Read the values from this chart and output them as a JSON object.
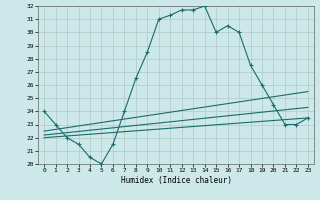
{
  "xlabel": "Humidex (Indice chaleur)",
  "bg_color": "#cce8e8",
  "grid_color": "#b0c8c8",
  "line_color": "#1a6b6b",
  "xlim": [
    -0.5,
    23.5
  ],
  "ylim": [
    20,
    32
  ],
  "xticks": [
    0,
    1,
    2,
    3,
    4,
    5,
    6,
    7,
    8,
    9,
    10,
    11,
    12,
    13,
    14,
    15,
    16,
    17,
    18,
    19,
    20,
    21,
    22,
    23
  ],
  "yticks": [
    20,
    21,
    22,
    23,
    24,
    25,
    26,
    27,
    28,
    29,
    30,
    31,
    32
  ],
  "main_x": [
    0,
    1,
    2,
    3,
    4,
    5,
    6,
    7,
    8,
    9,
    10,
    11,
    12,
    13,
    14,
    15,
    16,
    17,
    18,
    19,
    20,
    21,
    22,
    23
  ],
  "main_y": [
    24,
    23,
    22,
    21.5,
    20.5,
    20,
    21.5,
    24,
    26.5,
    28.5,
    31,
    31.3,
    31.7,
    31.7,
    32,
    30,
    30.5,
    30,
    27.5,
    26,
    24.5,
    23,
    23,
    23.5
  ],
  "line2_x": [
    0,
    23
  ],
  "line2_y": [
    22.5,
    25.5
  ],
  "line3_x": [
    0,
    23
  ],
  "line3_y": [
    22.2,
    24.3
  ],
  "line4_x": [
    0,
    23
  ],
  "line4_y": [
    22.0,
    23.5
  ]
}
